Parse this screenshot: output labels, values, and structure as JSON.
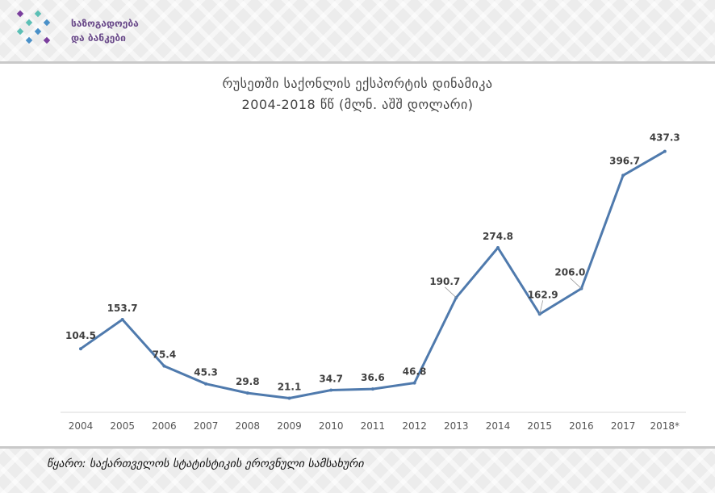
{
  "header": {
    "logo": {
      "name": "logo-icon",
      "line1": "საზოგადოება",
      "line2": "და ბანკები",
      "colors": [
        "#7a3e9d",
        "#4a90c8",
        "#5bbfb5"
      ]
    }
  },
  "footer": {
    "source": "წყარო: საქართველოს სტატისტიკის ეროვნული სამსახური"
  },
  "chart_data": {
    "type": "line",
    "title": "რუსეთში საქონლის ექსპორტის დინამიკა",
    "subtitle": "2004-2018 წწ (მლნ. აშშ დოლარი)",
    "categories": [
      "2004",
      "2005",
      "2006",
      "2007",
      "2008",
      "2009",
      "2010",
      "2011",
      "2012",
      "2013",
      "2014",
      "2015",
      "2016",
      "2017",
      "2018*"
    ],
    "values": [
      104.5,
      153.7,
      75.4,
      45.3,
      29.8,
      21.1,
      34.7,
      36.6,
      46.8,
      190.7,
      274.8,
      162.9,
      206.0,
      396.7,
      437.3
    ],
    "labels": [
      "104.5",
      "153.7",
      "75.4",
      "45.3",
      "29.8",
      "21.1",
      "34.7",
      "36.6",
      "46.8",
      "190.7",
      "274.8",
      "162.9",
      "206.0",
      "396.7",
      "437.3"
    ],
    "grid": false,
    "legend": "none",
    "line_color": "#4f7aad"
  }
}
